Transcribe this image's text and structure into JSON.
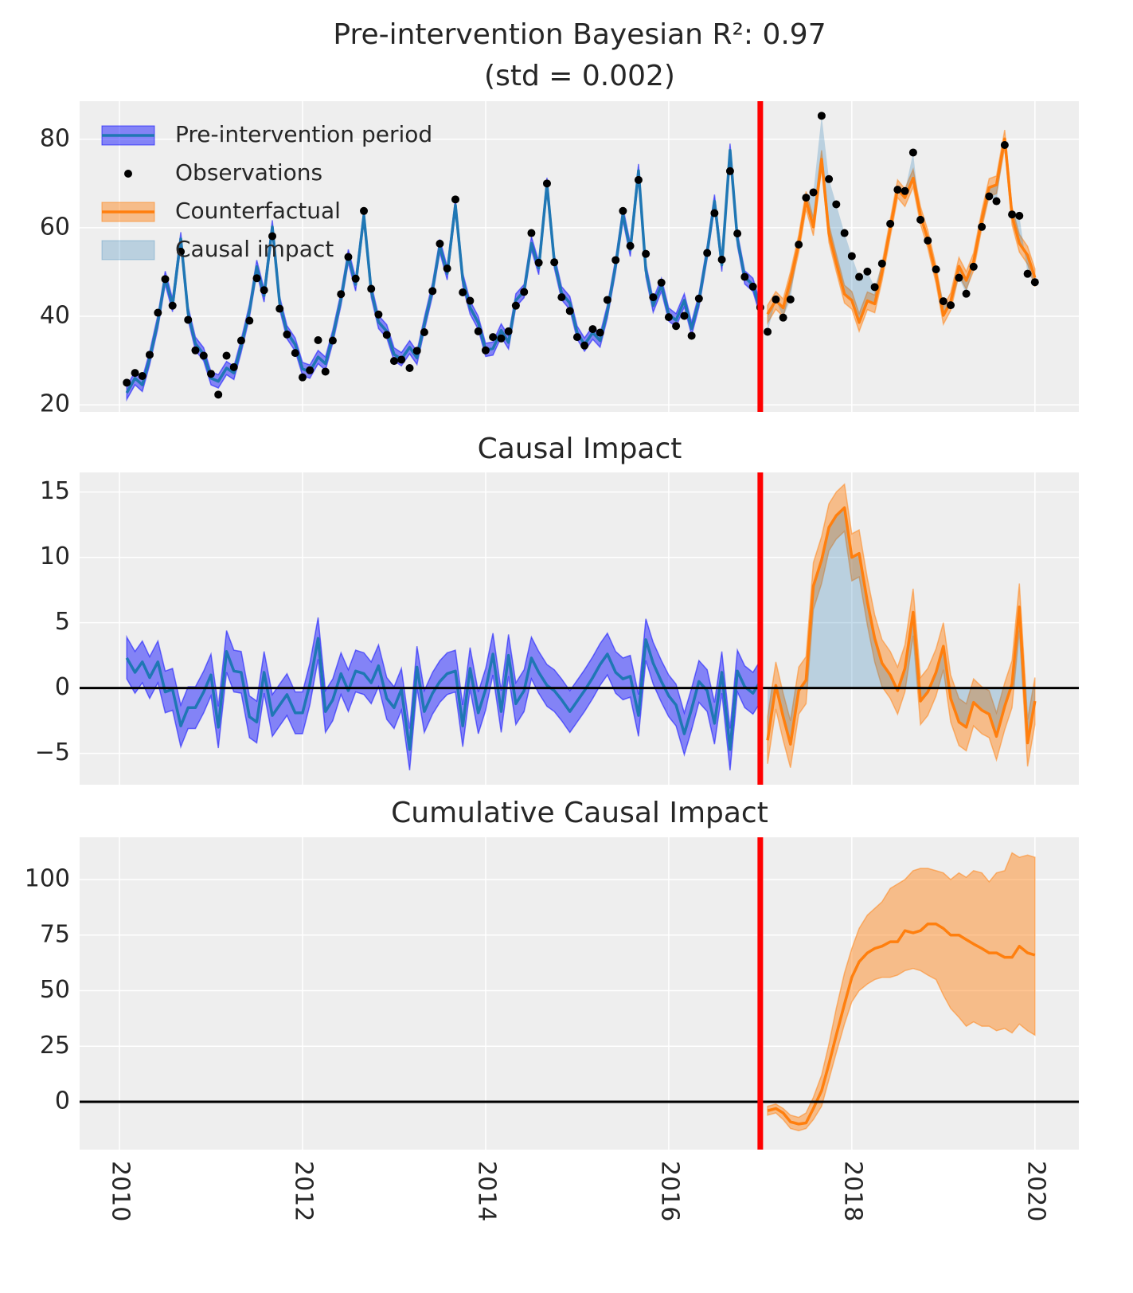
{
  "chart_data": [
    {
      "type": "line",
      "title_lines": [
        "Pre-intervention Bayesian R²: 0.97",
        "(std = 0.002)"
      ],
      "x": [
        2010.08,
        2010.17,
        2010.25,
        2010.33,
        2010.42,
        2010.5,
        2010.58,
        2010.67,
        2010.75,
        2010.83,
        2010.92,
        2011,
        2011.08,
        2011.17,
        2011.25,
        2011.33,
        2011.42,
        2011.5,
        2011.58,
        2011.67,
        2011.75,
        2011.83,
        2011.92,
        2012,
        2012.08,
        2012.17,
        2012.25,
        2012.33,
        2012.42,
        2012.5,
        2012.58,
        2012.67,
        2012.75,
        2012.83,
        2012.92,
        2013,
        2013.08,
        2013.17,
        2013.25,
        2013.33,
        2013.42,
        2013.5,
        2013.58,
        2013.67,
        2013.75,
        2013.83,
        2013.92,
        2014,
        2014.08,
        2014.17,
        2014.25,
        2014.33,
        2014.42,
        2014.5,
        2014.58,
        2014.67,
        2014.75,
        2014.83,
        2014.92,
        2015,
        2015.08,
        2015.17,
        2015.25,
        2015.33,
        2015.42,
        2015.5,
        2015.58,
        2015.67,
        2015.75,
        2015.83,
        2015.92,
        2016,
        2016.08,
        2016.17,
        2016.25,
        2016.33,
        2016.42,
        2016.5,
        2016.58,
        2016.67,
        2016.75,
        2016.83,
        2016.92,
        2017,
        2017.08,
        2017.17,
        2017.25,
        2017.33,
        2017.42,
        2017.5,
        2017.58,
        2017.67,
        2017.75,
        2017.83,
        2017.92,
        2018,
        2018.08,
        2018.17,
        2018.25,
        2018.33,
        2018.42,
        2018.5,
        2018.58,
        2018.67,
        2018.75,
        2018.83,
        2018.92,
        2019,
        2019.08,
        2019.17,
        2019.25,
        2019.33,
        2019.42,
        2019.5,
        2019.58,
        2019.67,
        2019.75,
        2019.83,
        2019.92,
        2020
      ],
      "series": [
        {
          "name": "Pre-intervention period",
          "color": "#1f77b4",
          "band_color": "#0000ff",
          "error": 1.5,
          "values": [
            22.7,
            26.0,
            24.5,
            30.5,
            38.8,
            48.7,
            42.5,
            57.5,
            40.7,
            33.8,
            31.4,
            26.0,
            25.3,
            28.3,
            27.2,
            33.3,
            41.2,
            51.2,
            44.7,
            60.2,
            43.0,
            36.4,
            33.6,
            28.1,
            27.5,
            30.8,
            29.3,
            35.4,
            43.9,
            53.6,
            47.2,
            62.7,
            45.8,
            38.7,
            36.6,
            31.4,
            30.3,
            33.0,
            30.6,
            38.2,
            46.1,
            55.9,
            49.7,
            65.1,
            48.3,
            42.0,
            38.5,
            32.4,
            32.7,
            36.8,
            34.1,
            43.6,
            45.7,
            56.5,
            50.9,
            69.8,
            52.4,
            45.2,
            43.0,
            36.3,
            33.6,
            36.3,
            34.5,
            41.1,
            51.5,
            63.1,
            55.0,
            72.9,
            50.4,
            42.4,
            47.1,
            40.4,
            39.1,
            43.6,
            37.2,
            43.5,
            54.5,
            66.0,
            51.6,
            77.5,
            57.4,
            48.8,
            47.1,
            41.5,
            null,
            null,
            null,
            null,
            null,
            null,
            null,
            null,
            null,
            null,
            null,
            null,
            null,
            null,
            null,
            null,
            null,
            null,
            null,
            null,
            null,
            null,
            null,
            null,
            null,
            null,
            null,
            null,
            null,
            null,
            null,
            null,
            null,
            null,
            null,
            null
          ]
        },
        {
          "name": "Observations",
          "color": "#000000",
          "marker": "dot",
          "values": [
            25,
            27.2,
            26.5,
            31.3,
            40.8,
            48.4,
            42.4,
            54.6,
            39.2,
            32.3,
            31.1,
            27.0,
            22.3,
            31.1,
            28.5,
            34.5,
            39.0,
            48.6,
            45.9,
            58.1,
            41.7,
            35.9,
            31.7,
            26.2,
            27.8,
            34.6,
            27.5,
            34.5,
            45.0,
            53.4,
            48.5,
            63.8,
            46.2,
            40.4,
            35.8,
            29.9,
            30.2,
            28.3,
            32.2,
            36.4,
            45.7,
            56.4,
            50.8,
            66.4,
            45.4,
            43.5,
            36.6,
            32.3,
            35.3,
            35.0,
            36.6,
            42.4,
            45.5,
            58.8,
            52.1,
            70.0,
            52.2,
            44.3,
            41.2,
            35.3,
            33.4,
            37.1,
            36.3,
            43.7,
            52.7,
            63.8,
            55.9,
            70.8,
            54.1,
            44.3,
            47.6,
            39.8,
            37.8,
            40.1,
            35.6,
            44.0,
            54.3,
            63.3,
            52.8,
            72.8,
            58.7,
            48.9,
            46.7,
            42.0,
            36.5,
            43.8,
            39.7,
            43.8,
            56.2,
            66.8,
            68.0,
            85.3,
            71.0,
            65.3,
            58.8,
            53.6,
            48.9,
            50.1,
            46.6,
            51.9,
            60.9,
            68.6,
            68.3,
            77.0,
            61.8,
            57.1,
            50.6,
            43.4,
            42.5,
            48.7,
            45.1,
            51.2,
            60.2,
            67.1,
            66.0,
            78.7,
            63.0,
            62.7,
            49.6,
            47.7
          ]
        },
        {
          "name": "Counterfactual",
          "color": "#ff7f0e",
          "band_color": "#ff7f0e",
          "error": 2.0,
          "values": [
            null,
            null,
            null,
            null,
            null,
            null,
            null,
            null,
            null,
            null,
            null,
            null,
            null,
            null,
            null,
            null,
            null,
            null,
            null,
            null,
            null,
            null,
            null,
            null,
            null,
            null,
            null,
            null,
            null,
            null,
            null,
            null,
            null,
            null,
            null,
            null,
            null,
            null,
            null,
            null,
            null,
            null,
            null,
            null,
            null,
            null,
            null,
            null,
            null,
            null,
            null,
            null,
            null,
            null,
            null,
            null,
            null,
            null,
            null,
            null,
            null,
            null,
            null,
            null,
            null,
            null,
            null,
            null,
            null,
            null,
            null,
            null,
            null,
            null,
            null,
            null,
            null,
            null,
            null,
            null,
            null,
            null,
            null,
            null,
            40.5,
            43.6,
            41.9,
            48.1,
            56.4,
            66.2,
            60.2,
            75.5,
            58.7,
            52.1,
            45.0,
            43.6,
            38.6,
            43.5,
            42.8,
            50.0,
            59.9,
            68.8,
            66.8,
            71.2,
            62.8,
            57.4,
            49.4,
            40.2,
            43.3,
            51.3,
            48.1,
            52.3,
            61.9,
            69.1,
            69.7,
            80.1,
            62.7,
            56.5,
            53.8,
            48.7
          ]
        },
        {
          "name": "Causal impact",
          "color": "#1f77b4"
        }
      ],
      "xlim": [
        2009.565,
        2020.48
      ],
      "xticks": [
        2010,
        2012,
        2014,
        2016,
        2018,
        2020
      ],
      "ylim": [
        18.4,
        88.6
      ],
      "yticks": [
        20,
        40,
        60,
        80
      ],
      "intervention": 2017,
      "grid": true,
      "legend": "upper left"
    },
    {
      "type": "line",
      "title": "Causal Impact",
      "x": [
        2010.08,
        2010.17,
        2010.25,
        2010.33,
        2010.42,
        2010.5,
        2010.58,
        2010.67,
        2010.75,
        2010.83,
        2010.92,
        2011,
        2011.08,
        2011.17,
        2011.25,
        2011.33,
        2011.42,
        2011.5,
        2011.58,
        2011.67,
        2011.75,
        2011.83,
        2011.92,
        2012,
        2012.08,
        2012.17,
        2012.25,
        2012.33,
        2012.42,
        2012.5,
        2012.58,
        2012.67,
        2012.75,
        2012.83,
        2012.92,
        2013,
        2013.08,
        2013.17,
        2013.25,
        2013.33,
        2013.42,
        2013.5,
        2013.58,
        2013.67,
        2013.75,
        2013.83,
        2013.92,
        2014,
        2014.08,
        2014.17,
        2014.25,
        2014.33,
        2014.42,
        2014.5,
        2014.58,
        2014.67,
        2014.75,
        2014.83,
        2014.92,
        2015,
        2015.08,
        2015.17,
        2015.25,
        2015.33,
        2015.42,
        2015.5,
        2015.58,
        2015.67,
        2015.75,
        2015.83,
        2015.92,
        2016,
        2016.08,
        2016.17,
        2016.25,
        2016.33,
        2016.42,
        2016.5,
        2016.58,
        2016.67,
        2016.75,
        2016.83,
        2016.92,
        2017,
        2017.08,
        2017.17,
        2017.25,
        2017.33,
        2017.42,
        2017.5,
        2017.58,
        2017.67,
        2017.75,
        2017.83,
        2017.92,
        2018,
        2018.08,
        2018.17,
        2018.25,
        2018.33,
        2018.42,
        2018.5,
        2018.58,
        2018.67,
        2018.75,
        2018.83,
        2018.92,
        2019,
        2019.08,
        2019.17,
        2019.25,
        2019.33,
        2019.42,
        2019.5,
        2019.58,
        2019.67,
        2019.75,
        2019.83,
        2019.92,
        2020
      ],
      "series": [
        {
          "color": "#1f77b4",
          "band_color": "#0000ff",
          "error": 1.6,
          "values": [
            2.3,
            1.2,
            2.0,
            0.8,
            2.0,
            -0.3,
            -0.1,
            -2.9,
            -1.5,
            -1.5,
            -0.3,
            1.0,
            -3.0,
            2.8,
            1.3,
            1.2,
            -2.2,
            -2.6,
            1.2,
            -2.1,
            -1.3,
            -0.5,
            -1.9,
            -1.9,
            0.3,
            3.8,
            -1.8,
            -0.9,
            1.1,
            -0.2,
            1.3,
            1.1,
            0.4,
            1.7,
            -0.8,
            -1.5,
            -0.1,
            -4.7,
            1.6,
            -1.8,
            -0.4,
            0.5,
            1.1,
            1.3,
            -2.9,
            1.5,
            -1.9,
            -0.1,
            2.6,
            -1.8,
            2.5,
            -1.2,
            -0.2,
            2.3,
            1.2,
            0.2,
            -0.2,
            -0.9,
            -1.8,
            -1.0,
            -0.2,
            0.8,
            1.8,
            2.6,
            1.2,
            0.7,
            0.9,
            -2.1,
            3.7,
            1.9,
            0.5,
            -0.6,
            -1.3,
            -3.5,
            -1.6,
            0.5,
            -0.2,
            -2.7,
            1.2,
            -4.7,
            1.3,
            0.1,
            -0.4,
            0.5,
            null,
            null,
            null,
            null,
            null,
            null,
            null,
            null,
            null,
            null,
            null,
            null,
            null,
            null,
            null,
            null,
            null,
            null,
            null,
            null,
            null,
            null,
            null,
            null,
            null,
            null,
            null,
            null,
            null,
            null,
            null,
            null,
            null,
            null,
            null,
            null
          ]
        },
        {
          "color": "#ff7f0e",
          "band_color": "#ff7f0e",
          "error": 1.8,
          "fill": "#1f77b4",
          "values": [
            null,
            null,
            null,
            null,
            null,
            null,
            null,
            null,
            null,
            null,
            null,
            null,
            null,
            null,
            null,
            null,
            null,
            null,
            null,
            null,
            null,
            null,
            null,
            null,
            null,
            null,
            null,
            null,
            null,
            null,
            null,
            null,
            null,
            null,
            null,
            null,
            null,
            null,
            null,
            null,
            null,
            null,
            null,
            null,
            null,
            null,
            null,
            null,
            null,
            null,
            null,
            null,
            null,
            null,
            null,
            null,
            null,
            null,
            null,
            null,
            null,
            null,
            null,
            null,
            null,
            null,
            null,
            null,
            null,
            null,
            null,
            null,
            null,
            null,
            null,
            null,
            null,
            null,
            null,
            null,
            null,
            null,
            null,
            null,
            -4.0,
            0.2,
            -2.2,
            -4.3,
            -0.2,
            0.6,
            7.8,
            9.8,
            12.3,
            13.2,
            13.8,
            10.0,
            10.3,
            6.6,
            3.8,
            1.9,
            1.0,
            -0.2,
            1.5,
            5.8,
            -1.0,
            -0.3,
            1.2,
            3.2,
            -0.8,
            -2.6,
            -3.0,
            -1.1,
            -1.7,
            -2.0,
            -3.7,
            -1.4,
            0.3,
            6.2,
            -4.2,
            -1.0
          ]
        }
      ],
      "xlim": [
        2009.565,
        2020.48
      ],
      "xticks": [
        2010,
        2012,
        2014,
        2016,
        2018,
        2020
      ],
      "ylim": [
        -7.4,
        16.5
      ],
      "yticks": [
        {
          "value": -5,
          "label": "−5"
        },
        0,
        5,
        10,
        15
      ],
      "intervention": 2017,
      "hline": 0,
      "grid": true
    },
    {
      "type": "line",
      "title": "Cumulative Causal Impact",
      "x": [
        2017.08,
        2017.17,
        2017.25,
        2017.33,
        2017.42,
        2017.5,
        2017.58,
        2017.67,
        2017.75,
        2017.83,
        2017.92,
        2018,
        2018.08,
        2018.17,
        2018.25,
        2018.33,
        2018.42,
        2018.5,
        2018.58,
        2018.67,
        2018.75,
        2018.83,
        2018.92,
        2019,
        2019.08,
        2019.17,
        2019.25,
        2019.33,
        2019.42,
        2019.5,
        2019.58,
        2019.67,
        2019.75,
        2019.83,
        2019.92,
        2020
      ],
      "series": [
        {
          "color": "#ff7f0e",
          "band_color": "#ff7f0e",
          "values": [
            -4,
            -3,
            -5,
            -9,
            -10,
            -9.5,
            -3,
            5,
            17,
            30,
            44,
            56,
            63,
            67,
            69,
            70,
            72,
            72,
            77,
            76,
            77,
            80,
            80,
            78,
            75,
            75,
            73,
            71,
            69,
            67,
            67,
            65,
            65,
            70,
            67,
            66
          ],
          "lower": [
            -6,
            -5,
            -8,
            -12,
            -13,
            -12,
            -8,
            -2,
            10,
            22,
            35,
            45,
            50,
            53,
            55,
            56,
            56,
            57,
            59,
            60,
            59,
            57,
            55,
            48,
            42,
            38,
            34,
            36,
            34,
            34,
            32,
            33,
            31,
            35,
            32,
            30
          ],
          "upper": [
            -2,
            -1,
            -3,
            -6,
            -7,
            -5,
            2,
            12,
            26,
            42,
            58,
            69,
            78,
            84,
            87,
            90,
            96,
            98,
            100,
            104,
            105,
            105,
            104,
            103,
            100,
            103,
            101,
            104,
            103,
            99,
            103,
            104,
            112,
            110,
            111,
            110
          ]
        }
      ],
      "xlim": [
        2009.565,
        2020.48
      ],
      "xticks": [
        2010,
        2012,
        2014,
        2016,
        2018,
        2020
      ],
      "ylim": [
        -21.5,
        119
      ],
      "yticks": [
        0,
        25,
        50,
        75,
        100
      ],
      "intervention": 2017,
      "hline": 0,
      "grid": true
    }
  ]
}
